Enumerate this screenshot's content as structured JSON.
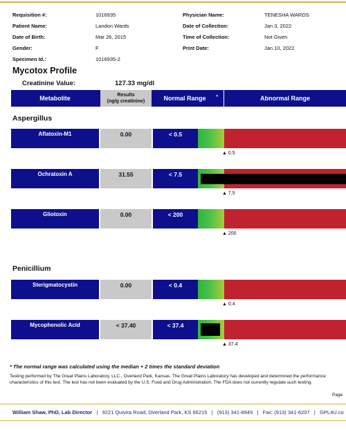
{
  "header": {
    "left": [
      {
        "label": "Requisition #:",
        "value": "1016935"
      },
      {
        "label": "Patient Name:",
        "value": "Landon Wards"
      },
      {
        "label": "Date of Birth:",
        "value": "Mar 26, 2015"
      },
      {
        "label": "Gender:",
        "value": "F"
      },
      {
        "label": "Specimen Id.:",
        "value": "1016935-2"
      }
    ],
    "right": [
      {
        "label": "Physician Name:",
        "value": "TENESHA WARDS"
      },
      {
        "label": "Date of Collection:",
        "value": "Jan 3, 2022"
      },
      {
        "label": "Time of Collection:",
        "value": "Not Given"
      },
      {
        "label": "Print Date:",
        "value": "Jan 10, 2022"
      }
    ]
  },
  "profile_title": "Mycotox Profile",
  "creatinine": {
    "label": "Creatinine Value:",
    "value": "127.33 mg/dl"
  },
  "table_header": {
    "metabolite": "Metabolite",
    "results_line1": "Results",
    "results_line2": "(ng/g creatinine)",
    "normal_range": "Normal Range",
    "star": "*",
    "abnormal_range": "Abnormal Range"
  },
  "sections": [
    {
      "title": "Aspergillus",
      "rows": [
        {
          "name": "Aflatoxin-M1",
          "result": "0.00",
          "normal": "< 0.5",
          "marker": "▲ 0.5"
        },
        {
          "name": "Ochratoxin A",
          "result": "31.55",
          "normal": "< 7.5",
          "marker": "▲ 7.5"
        },
        {
          "name": "Gliotoxin",
          "result": "0.00",
          "normal": "< 200",
          "marker": "▲ 200"
        }
      ]
    },
    {
      "title": "Penicillium",
      "rows": [
        {
          "name": "Sterigmatocystin",
          "result": "0.00",
          "normal": "< 0.4",
          "marker": "▲ 0.4"
        },
        {
          "name": "Mycophenolic Acid",
          "result": "< 37.40",
          "normal": "< 37.4",
          "marker": "▲ 37.4"
        }
      ]
    }
  ],
  "footnote": "* The normal range was calculated using the median + 2 times the standard deviation",
  "disclaimer": "Testing performed by The Great Plains Laboratory, LLC., Overland Park, Kansas. The Great Plains Laboratory has developed and determined the performance characteristics of this test. The test has not been evaluated by the U.S. Food and Drug Administration. The FDA does not currently regulate such testing.",
  "page_label": "Page",
  "footer": {
    "director": "William Shaw, PhD, Lab Director",
    "address": "9221 Quivira Road, Overland Park, KS 66215",
    "phone": "(913) 341-8949",
    "fax": "Fax: (913) 341-6207",
    "web": "GPL4U.co"
  },
  "colors": {
    "navy": "#0d0f8d",
    "gray": "#c9c9c9",
    "red": "#c0222f",
    "green": "#2fb63a",
    "gold": "#d8b340"
  }
}
